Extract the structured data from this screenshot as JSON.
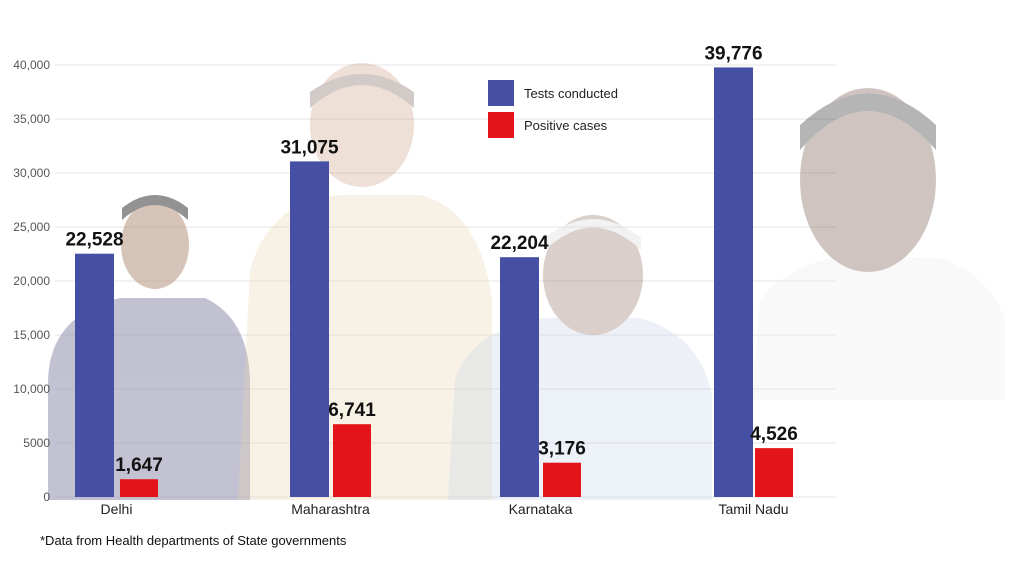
{
  "chart_data": {
    "type": "bar",
    "categories": [
      "Delhi",
      "Maharashtra",
      "Karnataka",
      "Tamil Nadu"
    ],
    "series": [
      {
        "name": "Tests conducted",
        "color": "#454fa3",
        "values": [
          22528,
          31075,
          22204,
          39776
        ],
        "labels": [
          "22,528",
          "31,075",
          "22,204",
          "39,776"
        ]
      },
      {
        "name": "Positive cases",
        "color": "#e3151b",
        "values": [
          1647,
          6741,
          3176,
          4526
        ],
        "labels": [
          "1,647",
          "6,741",
          "3,176",
          "4,526"
        ]
      }
    ],
    "yticks": [
      "0",
      "5000",
      "10,000",
      "15,000",
      "20,000",
      "25,000",
      "30,000",
      "35,000",
      "40,000"
    ],
    "ylim": [
      0,
      40000
    ],
    "title": "",
    "xlabel": "",
    "ylabel": "",
    "legend_position": "top-center",
    "grid": true
  },
  "footnote": "*Data from Health departments of State governments"
}
